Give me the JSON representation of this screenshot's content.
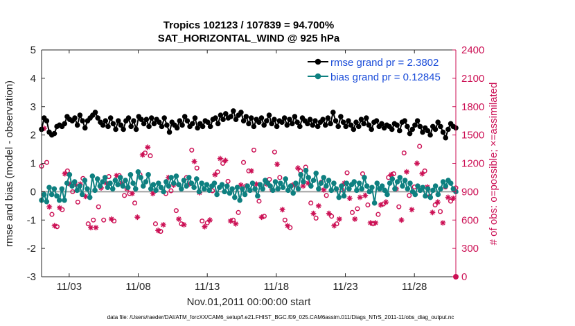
{
  "chart_data": {
    "type": "line",
    "title": "Tropics 102123 / 107839 = 94.700%",
    "subtitle": "SAT_HORIZONTAL_WIND @ 925 hPa",
    "xlabel": "Nov.01,2011 00:00:00 start",
    "ylabel_left": "rmse and bias (model - observation)",
    "ylabel_right": "# of obs: o=possible; ×=assimilated",
    "footnote": "data file: /Users/raeder/DAI/ATM_forcXX/CAM6_setup/f.e21.FHIST_BGC.f09_025.CAM6assim.011/Diags_NTrS_2011-11/obs_diag_output.nc",
    "x_range": [
      1,
      31
    ],
    "y_left_range": [
      -3,
      5
    ],
    "y_right_range": [
      0,
      2400
    ],
    "x_tick_values": [
      3,
      8,
      13,
      18,
      23,
      28
    ],
    "x_ticks": [
      "11/03",
      "11/08",
      "11/13",
      "11/18",
      "11/23",
      "11/28"
    ],
    "y_left_ticks": [
      "-3",
      "-2",
      "-1",
      "0",
      "1",
      "2",
      "3",
      "4",
      "5"
    ],
    "y_right_ticks": [
      "0",
      "300",
      "600",
      "900",
      "1200",
      "1500",
      "1800",
      "2100",
      "2400"
    ],
    "zero_line": 0,
    "colors": {
      "rmse": "#000000",
      "bias": "#0e8080",
      "obs": "#cc1155",
      "right_axis": "#cc1155",
      "zero": "#a0a0a0",
      "legend_text": "#1a4cd9"
    },
    "series": [
      {
        "name": "rmse grand pr = 2.3802",
        "key": "rmse",
        "axis": "left",
        "values": [
          2.2,
          2.6,
          2.5,
          2.1,
          2.0,
          2.05,
          2.3,
          2.35,
          2.3,
          2.4,
          2.65,
          2.55,
          2.5,
          2.6,
          2.35,
          2.7,
          2.5,
          2.25,
          2.5,
          2.6,
          2.7,
          2.8,
          2.6,
          2.45,
          2.35,
          2.5,
          2.3,
          2.6,
          2.4,
          2.2,
          2.5,
          2.35,
          2.2,
          2.5,
          2.6,
          2.3,
          2.5,
          2.2,
          2.65,
          2.55,
          2.4,
          2.55,
          2.3,
          2.6,
          2.4,
          2.55,
          2.45,
          2.3,
          2.6,
          2.35,
          2.1,
          2.45,
          2.35,
          2.25,
          2.5,
          2.35,
          2.65,
          2.5,
          2.3,
          2.4,
          2.6,
          2.25,
          2.4,
          2.3,
          2.5,
          2.45,
          2.3,
          2.55,
          2.6,
          2.4,
          2.7,
          2.55,
          2.75,
          2.6,
          2.65,
          2.85,
          2.55,
          2.7,
          2.8,
          2.5,
          2.65,
          2.4,
          2.6,
          2.3,
          2.55,
          2.45,
          2.6,
          2.35,
          2.5,
          2.7,
          2.4,
          2.55,
          2.3,
          2.5,
          2.45,
          2.6,
          2.35,
          2.55,
          2.4,
          2.65,
          2.45,
          2.3,
          2.6,
          2.5,
          2.4,
          2.55,
          2.35,
          2.5,
          2.3,
          2.45,
          2.55,
          2.35,
          2.6,
          2.4,
          2.8,
          2.5,
          2.3,
          2.65,
          2.45,
          2.3,
          2.5,
          2.35,
          2.2,
          2.45,
          2.3,
          2.55,
          2.4,
          2.6,
          2.35,
          2.2,
          2.45,
          2.5,
          2.3,
          2.4,
          2.25,
          2.35,
          2.3,
          2.2,
          2.4,
          2.35,
          2.15,
          2.45,
          2.5,
          2.3,
          2.05,
          2.2,
          2.35,
          2.5,
          2.3,
          2.1,
          2.25,
          2.15,
          2.0,
          2.3,
          2.2,
          2.45,
          2.3,
          2.1,
          1.9,
          2.2,
          2.4,
          2.3,
          2.25
        ]
      },
      {
        "name": "bias grand pr = 0.12845",
        "key": "bias",
        "axis": "left",
        "values": [
          -0.3,
          -0.1,
          -0.35,
          0.15,
          -0.1,
          0.1,
          -0.15,
          -0.3,
          0.1,
          -0.3,
          0.3,
          0.6,
          0.2,
          0.35,
          0.05,
          0.2,
          -0.1,
          0.4,
          0.1,
          -0.2,
          0.55,
          0.05,
          0.45,
          0.2,
          0.35,
          0.5,
          0.15,
          0.3,
          0.1,
          0.4,
          0.25,
          0.5,
          0.2,
          0.4,
          0.15,
          0.6,
          0.3,
          0.1,
          0.7,
          0.5,
          0.2,
          0.35,
          0.6,
          0.1,
          0.25,
          0.05,
          0.3,
          0.15,
          0.0,
          0.35,
          0.2,
          0.5,
          0.3,
          0.55,
          0.25,
          0.1,
          0.4,
          0.2,
          0.5,
          0.3,
          0.15,
          0.45,
          0.0,
          0.3,
          0.1,
          0.25,
          0.05,
          0.2,
          0.3,
          -0.1,
          0.15,
          0.25,
          0.0,
          0.2,
          -0.05,
          0.1,
          -0.2,
          0.15,
          -0.3,
          0.1,
          -0.1,
          0.2,
          0.05,
          0.3,
          0.1,
          -0.15,
          0.25,
          0.1,
          0.4,
          0.3,
          0.2,
          0.05,
          0.35,
          0.1,
          0.3,
          0.15,
          0.45,
          0.05,
          0.2,
          -0.05,
          0.3,
          0.1,
          0.6,
          0.35,
          0.75,
          0.5,
          0.2,
          0.4,
          0.65,
          0.1,
          0.3,
          0.5,
          0.2,
          0.4,
          0.05,
          0.3,
          0.1,
          -0.2,
          0.2,
          -0.15,
          0.3,
          0.1,
          0.25,
          0.35,
          0.05,
          0.3,
          0.1,
          0.5,
          0.2,
          0.0,
          0.15,
          -0.4,
          0.3,
          0.1,
          0.2,
          0.05,
          -0.1,
          0.3,
          0.45,
          0.1,
          0.35,
          0.5,
          0.2,
          0.4,
          0.1,
          0.3,
          0.0,
          -0.1,
          0.2,
          0.05,
          0.15,
          -0.15,
          0.1,
          -0.2,
          0.05,
          0.2,
          -0.1,
          0.1,
          0.35,
          0.2,
          0.4,
          0.3,
          0.1,
          0.0
        ]
      },
      {
        "name": "possible",
        "key": "possible",
        "axis": "right",
        "values": [
          1170,
          1650,
          1210,
          780,
          660,
          570,
          530,
          760,
          710,
          1160,
          1120,
          1030,
          900,
          1030,
          790,
          1030,
          1040,
          880,
          560,
          540,
          600,
          550,
          740,
          990,
          600,
          1030,
          1060,
          640,
          590,
          1130,
          1070,
          1040,
          860,
          970,
          880,
          920,
          780,
          660,
          1080,
          1350,
          1310,
          1440,
          1280,
          920,
          560,
          510,
          480,
          570,
          880,
          1100,
          910,
          1010,
          700,
          640,
          560,
          580,
          1050,
          1030,
          1340,
          1280,
          1150,
          930,
          590,
          550,
          570,
          620,
          910,
          1130,
          1110,
          1310,
          1200,
          1290,
          1010,
          620,
          600,
          590,
          680,
          1020,
          1210,
          1010,
          1120,
          1170,
          1340,
          1020,
          800,
          660,
          640,
          1030,
          1030,
          960,
          1320,
          1250,
          1050,
          740,
          600,
          560,
          520,
          1020,
          970,
          1210,
          1120,
          1010,
          1160,
          1040,
          780,
          700,
          620,
          780,
          1000,
          960,
          860,
          700,
          640,
          570,
          560,
          640,
          920,
          1040,
          1100,
          870,
          680,
          640,
          720,
          880,
          1090,
          900,
          760,
          600,
          560,
          590,
          660,
          790,
          770,
          830,
          1050,
          1140,
          1090,
          980,
          740,
          630,
          1310,
          1160,
          860,
          740,
          950,
          1260,
          1380,
          1140,
          1120,
          990,
          850,
          710,
          760,
          830,
          690,
          600,
          950,
          880,
          800,
          870,
          940
        ]
      },
      {
        "name": "assimilated",
        "key": "assimilated",
        "axis": "right",
        "values": [
          1080,
          1570,
          1140,
          740,
          630,
          540,
          500,
          730,
          680,
          1090,
          1060,
          980,
          860,
          980,
          760,
          980,
          990,
          850,
          540,
          520,
          570,
          520,
          710,
          940,
          570,
          990,
          1010,
          610,
          560,
          1070,
          1020,
          990,
          820,
          930,
          850,
          880,
          750,
          630,
          1030,
          1290,
          1250,
          1370,
          1220,
          880,
          540,
          490,
          460,
          550,
          840,
          1050,
          870,
          970,
          670,
          610,
          540,
          550,
          1000,
          980,
          1280,
          1220,
          1100,
          890,
          570,
          530,
          550,
          600,
          870,
          1080,
          1060,
          1250,
          1150,
          1230,
          970,
          590,
          570,
          560,
          650,
          970,
          1150,
          960,
          1070,
          1120,
          1280,
          980,
          770,
          630,
          610,
          980,
          980,
          920,
          1260,
          1190,
          1000,
          710,
          570,
          540,
          500,
          970,
          930,
          1150,
          1070,
          960,
          1110,
          990,
          750,
          670,
          590,
          750,
          960,
          920,
          820,
          670,
          610,
          540,
          530,
          610,
          880,
          990,
          1050,
          830,
          650,
          610,
          690,
          840,
          1040,
          860,
          730,
          570,
          540,
          570,
          630,
          760,
          740,
          790,
          1000,
          1080,
          1040,
          930,
          710,
          600,
          1250,
          1110,
          820,
          710,
          910,
          1200,
          1320,
          1090,
          1070,
          950,
          810,
          680,
          730,
          790,
          660,
          570,
          910,
          840,
          760,
          830,
          900
        ]
      }
    ]
  }
}
